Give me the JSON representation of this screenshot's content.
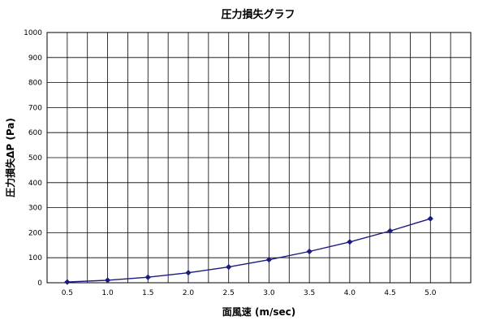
{
  "chart_data": {
    "type": "line",
    "title": "圧力損失グラフ",
    "xlabel": "面風速 (m/sec)",
    "ylabel": "圧力損失ΔP (Pa)",
    "x": [
      0.5,
      1.0,
      1.5,
      2.0,
      2.5,
      3.0,
      3.5,
      4.0,
      4.5,
      5.0
    ],
    "x_tick_labels": [
      "0.5",
      "1.0",
      "1.5",
      "2.0",
      "2.5",
      "3.0",
      "3.5",
      "4.0",
      "4.5",
      "5.0"
    ],
    "y_ticks": [
      0,
      100,
      200,
      300,
      400,
      500,
      600,
      700,
      800,
      900,
      1000
    ],
    "ylim": [
      0,
      1000
    ],
    "series": [
      {
        "values": [
          3,
          10,
          22,
          40,
          63,
          92,
          125,
          163,
          207,
          256
        ],
        "color": "#1a1a80",
        "marker": "diamond"
      }
    ],
    "grid": true,
    "legend": "none"
  }
}
